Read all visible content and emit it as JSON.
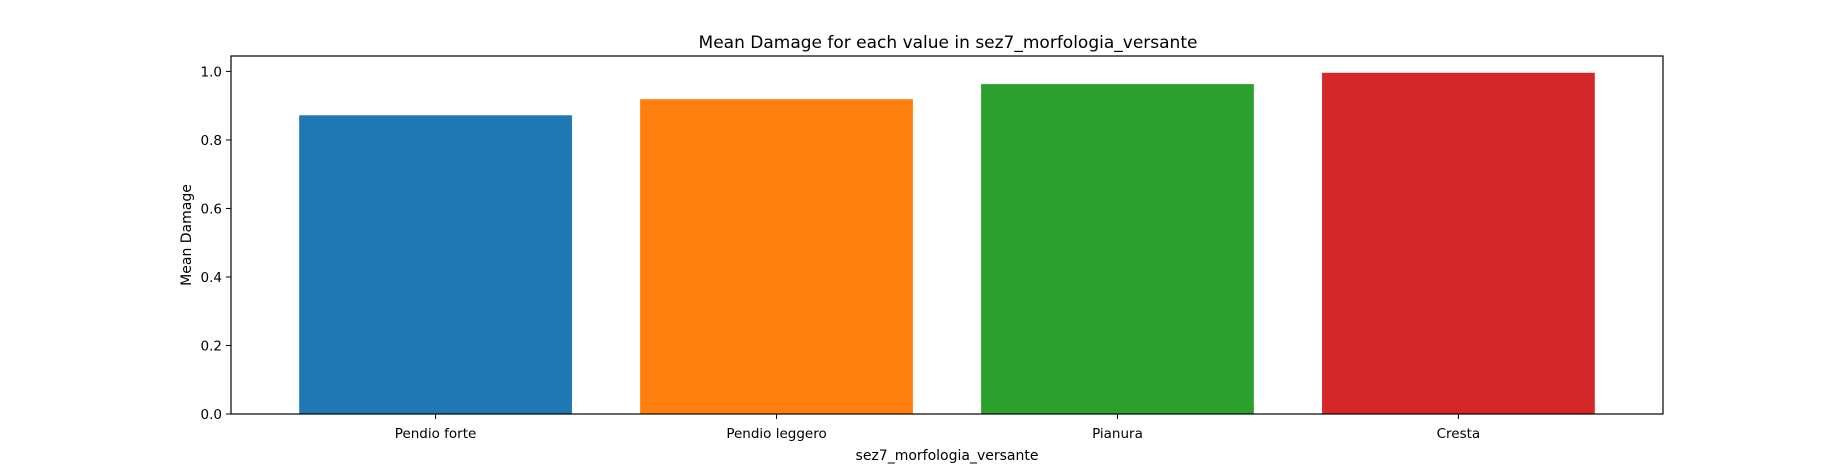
{
  "chart_data": {
    "type": "bar",
    "title": "Mean Damage for each value in sez7_morfologia_versante",
    "xlabel": "sez7_morfologia_versante",
    "ylabel": "Mean Damage",
    "categories": [
      "Pendio forte",
      "Pendio leggero",
      "Pianura",
      "Cresta"
    ],
    "values": [
      0.872,
      0.919,
      0.963,
      0.996
    ],
    "colors": [
      "#1f77b4",
      "#ff7f0e",
      "#2ca02c",
      "#d62728"
    ],
    "ylim": [
      0,
      1.045
    ],
    "yticks": [
      0.0,
      0.2,
      0.4,
      0.6,
      0.8,
      1.0
    ],
    "ytick_labels": [
      "0.0",
      "0.2",
      "0.4",
      "0.6",
      "0.8",
      "1.0"
    ],
    "grid": false,
    "legend": "none"
  }
}
